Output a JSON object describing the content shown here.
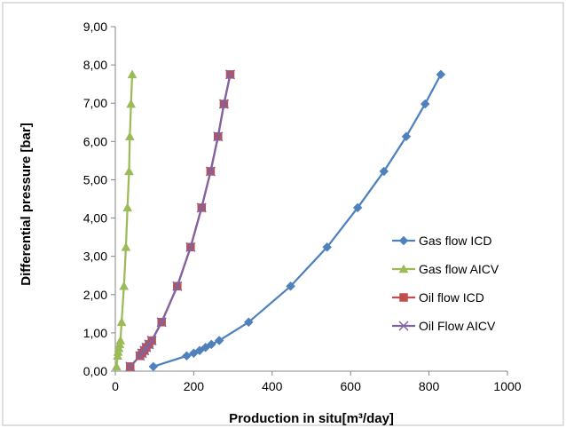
{
  "chart_data": {
    "type": "line",
    "title": "",
    "xlabel": "Production in situ[m³/day]",
    "ylabel": "Differential pressure [bar]",
    "xlim": [
      0,
      1000
    ],
    "ylim": [
      0,
      9
    ],
    "x_ticks": [
      "0",
      "200",
      "400",
      "600",
      "800",
      "1000"
    ],
    "y_ticks": [
      "0,00",
      "1,00",
      "2,00",
      "3,00",
      "4,00",
      "5,00",
      "6,00",
      "7,00",
      "8,00",
      "9,00"
    ],
    "grid": false,
    "legend_position": "right",
    "series": [
      {
        "name": "Gas flow ICD",
        "color": "#4F81BD",
        "marker": "diamond",
        "points": [
          [
            97,
            0.12
          ],
          [
            182,
            0.4
          ],
          [
            200,
            0.47
          ],
          [
            215,
            0.54
          ],
          [
            230,
            0.62
          ],
          [
            245,
            0.7
          ],
          [
            265,
            0.8
          ],
          [
            340,
            1.28
          ],
          [
            447,
            2.22
          ],
          [
            540,
            3.24
          ],
          [
            618,
            4.27
          ],
          [
            685,
            5.22
          ],
          [
            742,
            6.13
          ],
          [
            790,
            6.98
          ],
          [
            830,
            7.75
          ]
        ]
      },
      {
        "name": "Gas flow AICV",
        "color": "#9BBB59",
        "marker": "triangle",
        "points": [
          [
            3,
            0.12
          ],
          [
            6,
            0.4
          ],
          [
            7,
            0.5
          ],
          [
            9,
            0.6
          ],
          [
            11,
            0.7
          ],
          [
            13,
            0.8
          ],
          [
            16,
            1.28
          ],
          [
            22,
            2.22
          ],
          [
            27,
            3.24
          ],
          [
            31,
            4.27
          ],
          [
            35,
            5.22
          ],
          [
            37,
            6.13
          ],
          [
            40,
            6.98
          ],
          [
            43,
            7.75
          ]
        ]
      },
      {
        "name": "Oil flow ICD",
        "color": "#C0504D",
        "marker": "square",
        "points": [
          [
            38,
            0.12
          ],
          [
            63,
            0.4
          ],
          [
            68,
            0.47
          ],
          [
            74,
            0.54
          ],
          [
            79,
            0.62
          ],
          [
            86,
            0.7
          ],
          [
            93,
            0.8
          ],
          [
            118,
            1.28
          ],
          [
            158,
            2.22
          ],
          [
            192,
            3.24
          ],
          [
            220,
            4.27
          ],
          [
            243,
            5.22
          ],
          [
            262,
            6.13
          ],
          [
            277,
            6.98
          ],
          [
            293,
            7.75
          ]
        ]
      },
      {
        "name": "Oil Flow AICV",
        "color": "#8064A2",
        "marker": "x",
        "points": [
          [
            38,
            0.12
          ],
          [
            63,
            0.4
          ],
          [
            68,
            0.47
          ],
          [
            74,
            0.54
          ],
          [
            79,
            0.62
          ],
          [
            86,
            0.7
          ],
          [
            93,
            0.8
          ],
          [
            118,
            1.28
          ],
          [
            158,
            2.22
          ],
          [
            192,
            3.24
          ],
          [
            220,
            4.27
          ],
          [
            243,
            5.22
          ],
          [
            262,
            6.13
          ],
          [
            277,
            6.98
          ],
          [
            293,
            7.75
          ]
        ]
      }
    ]
  }
}
